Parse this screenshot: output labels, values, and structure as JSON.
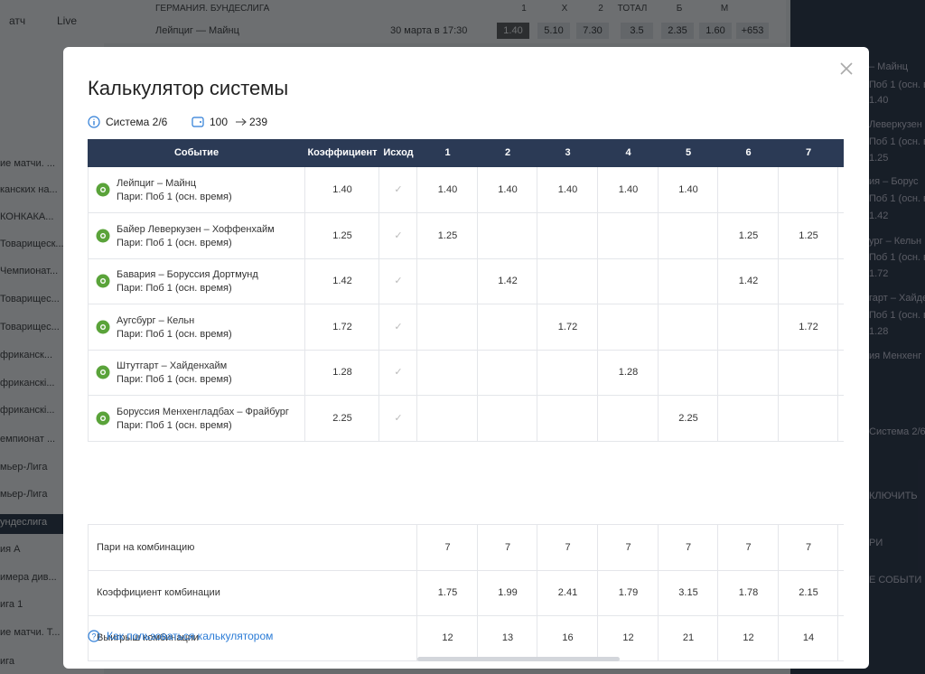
{
  "background": {
    "nav": [
      "атч",
      "Live"
    ],
    "league": "ГЕРМАНИЯ. БУНДЕСЛИГА",
    "market_headers": [
      "1",
      "X",
      "2",
      "ТОТАЛ",
      "Б",
      "М"
    ],
    "match": "Лейпциг — Майнц",
    "match_time": "30 марта в 17:30",
    "match_odds": [
      "1.40",
      "5.10",
      "7.30",
      "3.5",
      "2.35",
      "1.60",
      "+653"
    ],
    "sidebar": [
      "ие матчи. ...",
      "канских на...",
      "КОНКАКА...",
      "Товарищеск...",
      "Чемпионат...",
      "Товарищес...",
      "Товарищес...",
      "фриканск...",
      "фриканскі...",
      "фриканскі...",
      "емпионат ...",
      "мьер-Лига",
      "мьер-Лига",
      "ундеслига",
      "ия А",
      "имера див...",
      "ига 1",
      "ие матчи. Т...",
      "ига"
    ],
    "coupon": [
      "– Майнц",
      "Поб 1 (осн. вре",
      "1.40",
      "Леверкузен",
      "Поб 1 (осн. вре",
      "1.25",
      "ия – Борус",
      "Поб 1 (осн. вре",
      "1.42",
      "ург – Кельн",
      "Поб 1 (осн. вре",
      "1.72",
      "гарт – Хайде",
      "Поб 1 (осн. вре",
      "1.28",
      "ия Менхенг",
      "Система 2/6",
      "КЛЮЧИТЬ",
      "РИ",
      "Е СОБЫТИ"
    ]
  },
  "modal": {
    "title": "Калькулятор системы",
    "system": "Система 2/6",
    "stake": "100",
    "payout": "239",
    "columns": [
      "Событие",
      "Коэффициент",
      "Исход",
      "1",
      "2",
      "3",
      "4",
      "5",
      "6",
      "7"
    ],
    "events": [
      {
        "name": "Лейпциг – Майнц",
        "bet": "Пари: Поб 1 (осн. время)",
        "odds": "1.40",
        "cells": [
          "1.40",
          "1.40",
          "1.40",
          "1.40",
          "1.40",
          null,
          null
        ]
      },
      {
        "name": "Байер Леверкузен – Хоффенхайм",
        "bet": "Пари: Поб 1 (осн. время)",
        "odds": "1.25",
        "cells": [
          "1.25",
          null,
          null,
          null,
          null,
          "1.25",
          "1.25"
        ]
      },
      {
        "name": "Бавария – Боруссия Дортмунд",
        "bet": "Пари: Поб 1 (осн. время)",
        "odds": "1.42",
        "cells": [
          null,
          "1.42",
          null,
          null,
          null,
          "1.42",
          null
        ]
      },
      {
        "name": "Аугсбург – Кельн",
        "bet": "Пари: Поб 1 (осн. время)",
        "odds": "1.72",
        "cells": [
          null,
          null,
          "1.72",
          null,
          null,
          null,
          "1.72"
        ]
      },
      {
        "name": "Штутгарт – Хайденхайм",
        "bet": "Пари: Поб 1 (осн. время)",
        "odds": "1.28",
        "cells": [
          null,
          null,
          null,
          "1.28",
          null,
          null,
          null
        ]
      },
      {
        "name": "Боруссия Менхенгладбах – Фрайбург",
        "bet": "Пари: Поб 1 (осн. время)",
        "odds": "2.25",
        "cells": [
          null,
          null,
          null,
          null,
          "2.25",
          null,
          null
        ]
      }
    ],
    "summary": [
      {
        "label": "Пари на комбинацию",
        "values": [
          "7",
          "7",
          "7",
          "7",
          "7",
          "7",
          "7"
        ]
      },
      {
        "label": "Коэффициент комбинации",
        "values": [
          "1.75",
          "1.99",
          "2.41",
          "1.79",
          "3.15",
          "1.78",
          "2.15"
        ]
      },
      {
        "label": "Выигрыш комбинации",
        "values": [
          "12",
          "13",
          "16",
          "12",
          "21",
          "12",
          "14"
        ]
      }
    ],
    "help_link": "Как пользоваться калькулятором"
  }
}
